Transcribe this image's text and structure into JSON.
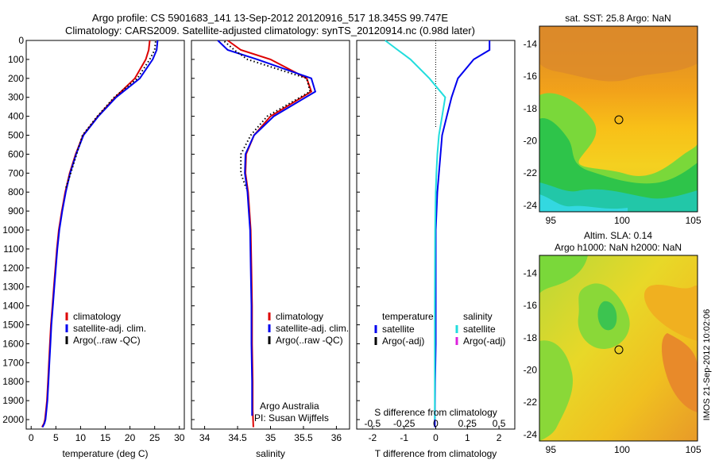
{
  "title_line1": "Argo profile: CS 5901683_141 13-Sep-2012 20120916_517 18.345S 99.747E",
  "title_line2": "Climatology: CARS2009. Satellite-adjusted climatology: synTS_20120914.nc (0.98d later)",
  "credit": "IMOS 21-Sep-2012 10:02:06",
  "colors": {
    "climatology": "#dd0000",
    "satellite": "#0000ee",
    "argo": "#000000",
    "satellite_salinity": "#22dddd",
    "argo_salinity_adj": "#dd22dd"
  },
  "chart_data": [
    {
      "type": "line",
      "name": "temperature",
      "xlabel": "temperature (deg C)",
      "ylabel": "",
      "xlim": [
        -1,
        31
      ],
      "ylim": [
        2050,
        0
      ],
      "xticks": [
        0,
        5,
        10,
        15,
        20,
        25,
        30
      ],
      "yticks": [
        0,
        100,
        200,
        300,
        400,
        500,
        600,
        700,
        800,
        900,
        1000,
        1100,
        1200,
        1300,
        1400,
        1500,
        1600,
        1700,
        1800,
        1900,
        2000
      ],
      "legend": [
        "climatology",
        "satellite-adj. clim.",
        "Argo(..raw -QC)"
      ],
      "legend_placement": "lower-center",
      "series": [
        {
          "name": "climatology",
          "x": [
            24.0,
            23.8,
            23.2,
            21.0,
            17.0,
            13.5,
            10.5,
            9.0,
            7.8,
            6.9,
            6.2,
            5.6,
            5.2,
            4.9,
            4.6,
            4.3,
            4.0,
            3.8,
            3.6,
            3.4,
            3.2,
            3.0,
            2.8,
            2.6,
            2.4,
            2.2
          ],
          "y": [
            0,
            50,
            100,
            200,
            300,
            400,
            500,
            600,
            700,
            800,
            900,
            1000,
            1100,
            1200,
            1300,
            1400,
            1500,
            1600,
            1700,
            1800,
            1900,
            1950,
            2000,
            2020,
            2030,
            2040
          ]
        },
        {
          "name": "satellite-adj. clim.",
          "x": [
            25.6,
            25.4,
            24.6,
            22.0,
            17.2,
            13.6,
            10.6,
            9.1,
            7.9,
            7.0,
            6.3,
            5.7,
            5.3,
            5.0,
            4.7,
            4.4,
            4.1,
            3.9,
            3.7,
            3.5,
            3.3,
            3.1,
            2.9,
            2.7,
            2.5,
            2.3
          ],
          "y": [
            0,
            50,
            100,
            200,
            300,
            400,
            500,
            600,
            700,
            800,
            900,
            1000,
            1100,
            1200,
            1300,
            1400,
            1500,
            1600,
            1700,
            1800,
            1900,
            1950,
            2000,
            2020,
            2030,
            2040
          ]
        },
        {
          "name": "Argo(..raw -QC)",
          "x": [
            25.2,
            25.0,
            24.0,
            21.5,
            16.8,
            13.4,
            10.4,
            9.2,
            8.0,
            7.0
          ],
          "y": [
            5,
            50,
            100,
            200,
            300,
            400,
            500,
            600,
            700,
            780
          ]
        }
      ],
      "annotations": []
    },
    {
      "type": "line",
      "name": "salinity",
      "xlabel": "salinity",
      "xlim": [
        33.8,
        36.2
      ],
      "ylim": [
        2050,
        0
      ],
      "xticks": [
        34,
        34.5,
        35,
        35.5,
        36
      ],
      "legend": [
        "climatology",
        "satellite-adj. clim.",
        "Argo(..raw -QC)"
      ],
      "legend_placement": "lower-right",
      "series": [
        {
          "name": "climatology",
          "x": [
            34.35,
            34.55,
            35.0,
            35.55,
            35.62,
            35.0,
            34.75,
            34.63,
            34.62,
            34.66,
            34.68,
            34.7,
            34.71,
            34.72,
            34.72,
            34.73,
            34.73,
            34.74
          ],
          "y": [
            0,
            50,
            100,
            200,
            270,
            400,
            500,
            600,
            700,
            800,
            900,
            1000,
            1200,
            1400,
            1600,
            1800,
            1950,
            2040
          ]
        },
        {
          "name": "satellite-adj. clim.",
          "x": [
            34.2,
            34.35,
            34.8,
            35.62,
            35.68,
            35.05,
            34.75,
            34.62,
            34.61,
            34.65,
            34.67,
            34.69,
            34.7,
            34.71,
            34.71,
            34.72,
            34.72,
            34.72
          ],
          "y": [
            0,
            50,
            100,
            200,
            270,
            400,
            500,
            600,
            700,
            800,
            900,
            1000,
            1200,
            1400,
            1600,
            1800,
            1950,
            1980
          ]
        },
        {
          "name": "Argo(..raw -QC)",
          "x": [
            34.3,
            34.45,
            34.65,
            35.55,
            35.6,
            34.95,
            34.7,
            34.55,
            34.55,
            34.63
          ],
          "y": [
            5,
            50,
            100,
            200,
            270,
            400,
            500,
            600,
            700,
            780
          ]
        }
      ],
      "annotations": [
        "Argo Australia",
        "PI: Susan Wijffels"
      ]
    },
    {
      "type": "line",
      "name": "difference",
      "xlabel": "T difference from climatology",
      "top_xlabel": "S difference from climatology",
      "xlim": [
        -2.5,
        2.5
      ],
      "ylim": [
        2050,
        0
      ],
      "xticks": [
        -2,
        -1,
        0,
        1,
        2
      ],
      "top_xticks": [
        "-0.5",
        "-0.25",
        "0",
        "0.25",
        "0.5"
      ],
      "legend": [
        "temperature",
        "satellite",
        "Argo(-adj)",
        "salinity",
        "satellite",
        "Argo(-adj)"
      ],
      "legend_placement": "lower-center",
      "series": [
        {
          "name": "temperature satellite",
          "x": [
            1.7,
            1.7,
            1.2,
            0.7,
            0.5,
            0.35,
            0.2,
            0.15,
            0.1,
            0.05,
            0.0,
            0.0,
            0.0,
            0.0,
            -0.02,
            -0.03
          ],
          "y": [
            0,
            50,
            100,
            200,
            300,
            400,
            500,
            600,
            700,
            800,
            1000,
            1200,
            1400,
            1600,
            1800,
            2040
          ]
        },
        {
          "name": "salinity satellite",
          "x": [
            -1.6,
            -1.2,
            -0.8,
            -0.2,
            0.3,
            0.2,
            0.1,
            0.05,
            0.02,
            0.0,
            -0.02,
            -0.03,
            -0.03,
            -0.03
          ],
          "y": [
            0,
            50,
            100,
            200,
            300,
            400,
            500,
            600,
            700,
            800,
            1000,
            1400,
            1800,
            2000
          ]
        }
      ],
      "annotations": []
    },
    {
      "type": "heatmap",
      "name": "sst-map",
      "title": "sat. SST: 25.8 Argo: NaN",
      "xticks": [
        95,
        100,
        105
      ],
      "yticks": [
        -14,
        -16,
        -18,
        -20,
        -22,
        -24
      ],
      "marker": {
        "x": 99.747,
        "y": -18.345
      }
    },
    {
      "type": "heatmap",
      "name": "sla-map",
      "title_line1": "Altim. SLA: 0.14",
      "title_line2": "Argo h1000: NaN h2000: NaN",
      "xticks": [
        95,
        100,
        105
      ],
      "yticks": [
        -14,
        -16,
        -18,
        -20,
        -22,
        -24
      ],
      "marker": {
        "x": 99.747,
        "y": -18.345
      }
    }
  ]
}
